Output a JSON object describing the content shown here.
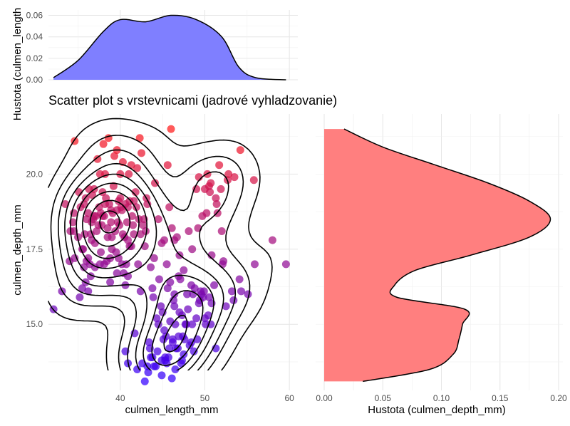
{
  "chart_data": [
    {
      "type": "area",
      "panel": "top-marginal-density",
      "series": [
        {
          "values": [
            0.002,
            0.018,
            0.045,
            0.056,
            0.054,
            0.06,
            0.056,
            0.04,
            0.012,
            0.002,
            0.0
          ]
        }
      ],
      "x": [
        32.1,
        35,
        38,
        40,
        43,
        46,
        49,
        52,
        54,
        56,
        59.6
      ],
      "y_values": [
        0.002,
        0.018,
        0.045,
        0.056,
        0.054,
        0.06,
        0.056,
        0.04,
        0.012,
        0.002,
        0.0
      ],
      "ylabel": "Hustota (culmen_length",
      "ylim": [
        0.0,
        0.065
      ],
      "yticks": [
        "0.00",
        "0.02",
        "0.04",
        "0.06"
      ],
      "fill_color": "#7f7fff",
      "grid": true
    },
    {
      "type": "scatter",
      "panel": "main-scatter-with-kde-contours",
      "title": "Scatter plot s vrstevnicami (jadrové vyhladzovanie)",
      "xlabel": "culmen_length_mm",
      "ylabel": "culmen_depth_mm",
      "xlim": [
        31.5,
        61
      ],
      "ylim": [
        12.8,
        22.0
      ],
      "xticks": [
        "40",
        "50",
        "60"
      ],
      "yticks": [
        "15.0",
        "17.5",
        "20.0"
      ],
      "color_low": "#3300ff",
      "color_high": "#ff1a1a",
      "grid": true,
      "points": [
        [
          32.1,
          15.5
        ],
        [
          33.1,
          16.1
        ],
        [
          33.5,
          19.0
        ],
        [
          34.0,
          17.1
        ],
        [
          34.1,
          18.1
        ],
        [
          34.4,
          18.4
        ],
        [
          34.5,
          18.1
        ],
        [
          34.6,
          21.1
        ],
        [
          34.6,
          17.2
        ],
        [
          35.0,
          17.9
        ],
        [
          35.1,
          19.4
        ],
        [
          35.2,
          15.9
        ],
        [
          35.3,
          18.9
        ],
        [
          35.5,
          17.5
        ],
        [
          35.5,
          16.2
        ],
        [
          35.6,
          17.5
        ],
        [
          35.7,
          16.9
        ],
        [
          35.9,
          19.2
        ],
        [
          36.0,
          18.5
        ],
        [
          36.0,
          17.1
        ],
        [
          36.2,
          17.2
        ],
        [
          36.2,
          16.1
        ],
        [
          36.3,
          19.5
        ],
        [
          36.4,
          17.0
        ],
        [
          36.5,
          18.0
        ],
        [
          36.6,
          17.8
        ],
        [
          36.7,
          19.3
        ],
        [
          36.8,
          18.5
        ],
        [
          36.9,
          18.6
        ],
        [
          37.0,
          16.9
        ],
        [
          37.2,
          18.1
        ],
        [
          37.3,
          20.5
        ],
        [
          37.5,
          18.9
        ],
        [
          37.6,
          17.0
        ],
        [
          37.7,
          18.7
        ],
        [
          37.8,
          18.3
        ],
        [
          37.9,
          18.6
        ],
        [
          38.1,
          18.6
        ],
        [
          38.1,
          17.0
        ],
        [
          38.2,
          20.0
        ],
        [
          38.3,
          19.2
        ],
        [
          38.5,
          17.9
        ],
        [
          38.6,
          21.2
        ],
        [
          38.7,
          19.0
        ],
        [
          38.8,
          17.2
        ],
        [
          38.9,
          18.8
        ],
        [
          39.0,
          17.5
        ],
        [
          39.1,
          18.7
        ],
        [
          39.2,
          19.6
        ],
        [
          39.3,
          20.6
        ],
        [
          39.5,
          17.4
        ],
        [
          39.6,
          18.8
        ],
        [
          39.7,
          18.4
        ],
        [
          39.8,
          19.1
        ],
        [
          40.0,
          20.0
        ],
        [
          40.1,
          18.9
        ],
        [
          40.2,
          17.0
        ],
        [
          40.3,
          18.0
        ],
        [
          40.5,
          17.9
        ],
        [
          40.6,
          19.0
        ],
        [
          40.7,
          17.0
        ],
        [
          40.8,
          18.4
        ],
        [
          40.9,
          18.9
        ],
        [
          41.1,
          19.1
        ],
        [
          41.1,
          17.6
        ],
        [
          41.3,
          20.3
        ],
        [
          41.4,
          18.6
        ],
        [
          41.5,
          18.3
        ],
        [
          41.6,
          19.1
        ],
        [
          41.8,
          19.4
        ],
        [
          42.0,
          20.2
        ],
        [
          42.2,
          18.5
        ],
        [
          42.3,
          21.2
        ],
        [
          42.5,
          20.7
        ],
        [
          42.7,
          18.3
        ],
        [
          42.8,
          18.5
        ],
        [
          43.1,
          19.2
        ],
        [
          43.2,
          19.0
        ],
        [
          44.1,
          19.7
        ],
        [
          44.5,
          18.5
        ],
        [
          45.8,
          18.9
        ],
        [
          46.0,
          21.5
        ],
        [
          45.6,
          20.3
        ],
        [
          44.9,
          17.7
        ],
        [
          46.4,
          17.8
        ],
        [
          47.0,
          17.3
        ],
        [
          46.9,
          16.6
        ],
        [
          46.1,
          18.2
        ],
        [
          45.2,
          17.8
        ],
        [
          45.5,
          17.0
        ],
        [
          47.5,
          16.8
        ],
        [
          48.1,
          18.1
        ],
        [
          49.2,
          18.2
        ],
        [
          49.0,
          19.5
        ],
        [
          50.0,
          19.5
        ],
        [
          50.2,
          18.7
        ],
        [
          50.5,
          19.6
        ],
        [
          51.3,
          19.2
        ],
        [
          51.4,
          19.0
        ],
        [
          51.7,
          20.3
        ],
        [
          52.0,
          18.1
        ],
        [
          52.7,
          19.8
        ],
        [
          53.5,
          19.9
        ],
        [
          54.2,
          20.8
        ],
        [
          55.8,
          19.8
        ],
        [
          52.8,
          20.0
        ],
        [
          50.6,
          19.4
        ],
        [
          49.7,
          18.6
        ],
        [
          48.5,
          17.5
        ],
        [
          50.7,
          19.7
        ],
        [
          51.5,
          18.7
        ],
        [
          49.3,
          19.9
        ],
        [
          50.3,
          20.0
        ],
        [
          51.9,
          19.5
        ],
        [
          46.7,
          17.9
        ],
        [
          58.0,
          17.8
        ],
        [
          59.6,
          17.0
        ],
        [
          55.9,
          17.0
        ],
        [
          54.3,
          16.1
        ],
        [
          53.4,
          15.8
        ],
        [
          52.2,
          17.1
        ],
        [
          50.8,
          17.3
        ],
        [
          49.6,
          16.0
        ],
        [
          48.4,
          16.3
        ],
        [
          47.3,
          15.3
        ],
        [
          46.5,
          15.0
        ],
        [
          45.1,
          14.5
        ],
        [
          44.9,
          13.3
        ],
        [
          43.2,
          13.6
        ],
        [
          42.9,
          13.1
        ],
        [
          42.0,
          13.5
        ],
        [
          41.7,
          14.7
        ],
        [
          40.9,
          13.7
        ],
        [
          40.6,
          14.1
        ],
        [
          40.9,
          16.6
        ],
        [
          42.4,
          16.1
        ],
        [
          43.5,
          14.2
        ],
        [
          43.3,
          13.4
        ],
        [
          43.6,
          13.9
        ],
        [
          44.0,
          13.6
        ],
        [
          44.4,
          14.1
        ],
        [
          44.5,
          15.0
        ],
        [
          45.0,
          15.4
        ],
        [
          45.3,
          13.8
        ],
        [
          45.4,
          14.6
        ],
        [
          45.7,
          13.9
        ],
        [
          46.2,
          14.5
        ],
        [
          46.4,
          15.6
        ],
        [
          46.8,
          14.2
        ],
        [
          47.0,
          15.4
        ],
        [
          47.2,
          13.7
        ],
        [
          47.5,
          14.0
        ],
        [
          47.7,
          15.0
        ],
        [
          48.2,
          14.3
        ],
        [
          48.5,
          15.0
        ],
        [
          48.7,
          14.1
        ],
        [
          49.0,
          15.2
        ],
        [
          49.1,
          14.5
        ],
        [
          49.5,
          16.1
        ],
        [
          49.8,
          15.9
        ],
        [
          50.0,
          15.2
        ],
        [
          50.1,
          15.0
        ],
        [
          50.4,
          15.3
        ],
        [
          50.5,
          15.9
        ],
        [
          50.8,
          15.7
        ],
        [
          51.1,
          16.3
        ],
        [
          52.1,
          17.0
        ],
        [
          52.5,
          15.6
        ],
        [
          53.2,
          16.1
        ],
        [
          54.1,
          16.5
        ],
        [
          55.1,
          16.0
        ],
        [
          46.1,
          13.2
        ],
        [
          45.2,
          14.8
        ],
        [
          46.6,
          14.2
        ],
        [
          47.4,
          14.6
        ],
        [
          48.4,
          14.4
        ],
        [
          49.3,
          15.7
        ],
        [
          48.8,
          16.2
        ],
        [
          46.3,
          15.8
        ],
        [
          45.5,
          13.7
        ],
        [
          45.8,
          14.2
        ],
        [
          43.8,
          13.9
        ],
        [
          44.2,
          13.6
        ],
        [
          47.8,
          15.0
        ],
        [
          47.9,
          16.0
        ],
        [
          46.9,
          14.6
        ],
        [
          45.9,
          15.1
        ],
        [
          46.2,
          14.4
        ],
        [
          47.6,
          14.5
        ],
        [
          48.6,
          16.0
        ],
        [
          49.9,
          16.1
        ],
        [
          50.7,
          15.0
        ],
        [
          51.3,
          14.2
        ],
        [
          46.5,
          13.5
        ],
        [
          44.8,
          15.6
        ],
        [
          42.6,
          13.7
        ],
        [
          43.4,
          14.4
        ],
        [
          44.9,
          13.8
        ],
        [
          45.6,
          16.2
        ],
        [
          47.1,
          16.5
        ],
        [
          48.0,
          15.5
        ],
        [
          49.4,
          15.8
        ],
        [
          46.4,
          16.0
        ],
        [
          44.3,
          15.2
        ],
        [
          43.9,
          15.9
        ],
        [
          45.3,
          13.9
        ],
        [
          47.3,
          13.8
        ],
        [
          38.2,
          19.0
        ],
        [
          39.9,
          18.3
        ],
        [
          37.4,
          18.3
        ],
        [
          36.6,
          18.4
        ],
        [
          38.8,
          16.4
        ],
        [
          40.4,
          16.7
        ],
        [
          42.9,
          17.6
        ],
        [
          43.8,
          16.2
        ],
        [
          41.0,
          20.0
        ],
        [
          40.0,
          19.2
        ],
        [
          37.9,
          19.4
        ],
        [
          39.0,
          17.9
        ],
        [
          38.9,
          18.4
        ],
        [
          40.2,
          18.8
        ],
        [
          41.3,
          17.6
        ],
        [
          36.5,
          16.6
        ],
        [
          35.8,
          18.0
        ],
        [
          37.0,
          17.7
        ],
        [
          38.4,
          17.1
        ],
        [
          39.6,
          16.7
        ],
        [
          41.6,
          18.0
        ],
        [
          40.9,
          17.8
        ],
        [
          39.4,
          18.1
        ],
        [
          37.7,
          17.4
        ],
        [
          43.0,
          18.1
        ],
        [
          35.9,
          16.4
        ],
        [
          37.1,
          18.6
        ],
        [
          38.5,
          18.2
        ],
        [
          39.8,
          17.2
        ],
        [
          42.1,
          17.0
        ],
        [
          36.9,
          19.5
        ],
        [
          40.3,
          20.4
        ],
        [
          38.0,
          21.0
        ],
        [
          39.6,
          20.8
        ],
        [
          37.6,
          20.0
        ],
        [
          35.7,
          19.0
        ],
        [
          36.2,
          18.7
        ],
        [
          34.5,
          18.7
        ],
        [
          40.6,
          16.3
        ],
        [
          41.9,
          18.9
        ],
        [
          42.4,
          18.0
        ],
        [
          44.0,
          17.2
        ],
        [
          44.6,
          16.5
        ],
        [
          45.9,
          16.4
        ],
        [
          43.6,
          16.9
        ]
      ]
    },
    {
      "type": "area",
      "panel": "right-marginal-density",
      "orientation": "horizontal",
      "xlabel": "Hustota (culmen_depth_mm)",
      "xlim": [
        0.0,
        0.205
      ],
      "xticks": [
        "0.00",
        "0.05",
        "0.10",
        "0.15",
        "0.20"
      ],
      "y": [
        21.5,
        20.9,
        20.3,
        19.7,
        19.1,
        18.5,
        17.9,
        17.3,
        16.8,
        16.3,
        15.9,
        15.5,
        15.0,
        14.5,
        14.0,
        13.5,
        13.1
      ],
      "y_values": [
        0.017,
        0.05,
        0.095,
        0.14,
        0.175,
        0.193,
        0.175,
        0.125,
        0.078,
        0.06,
        0.062,
        0.12,
        0.118,
        0.115,
        0.11,
        0.09,
        0.033
      ],
      "fill_color": "#ff7f7f",
      "grid": true
    }
  ]
}
